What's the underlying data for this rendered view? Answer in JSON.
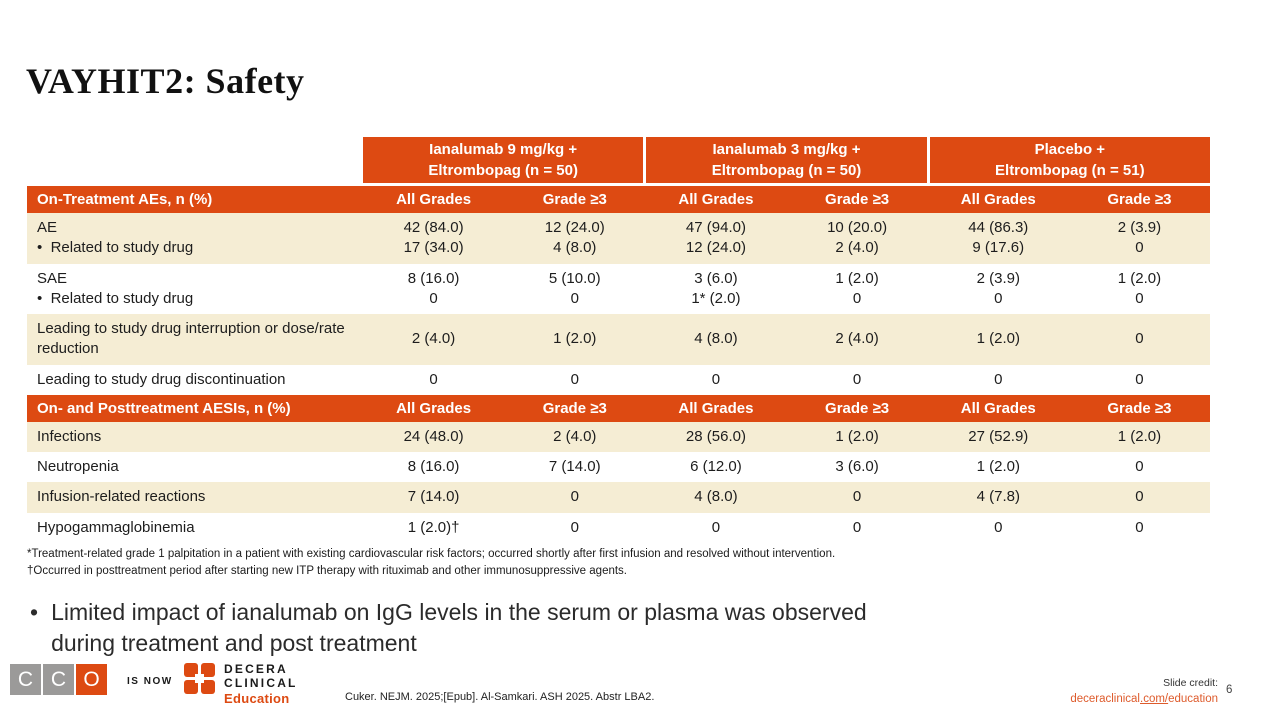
{
  "slide": {
    "title": "VAYHIT2: Safety",
    "bullet_marker": "•",
    "bullet": "Limited impact of ianalumab on IgG levels in the serum or plasma was observed\nduring treatment and post treatment",
    "page_number": "6"
  },
  "table": {
    "group_headers": [
      "Ianalumab 9 mg/kg +\nEltrombopag (n = 50)",
      "Ianalumab 3 mg/kg +\nEltrombopag (n = 50)",
      "Placebo +\nEltrombopag (n = 51)"
    ],
    "sections": [
      {
        "header": "On-Treatment AEs, n (%)",
        "subheaders": [
          "All Grades",
          "Grade ≥3",
          "All Grades",
          "Grade ≥3",
          "All Grades",
          "Grade ≥3"
        ],
        "rows": [
          {
            "label": "AE\n•  Related to study drug",
            "cells": [
              "42 (84.0)\n17 (34.0)",
              "12 (24.0)\n4 (8.0)",
              "47 (94.0)\n12 (24.0)",
              "10 (20.0)\n2 (4.0)",
              "44 (86.3)\n9 (17.6)",
              "2 (3.9)\n0"
            ]
          },
          {
            "label": "SAE\n•  Related to study drug",
            "cells": [
              "8 (16.0)\n0",
              "5 (10.0)\n0",
              "3 (6.0)\n1* (2.0)",
              "1 (2.0)\n0",
              "2 (3.9)\n0",
              "1 (2.0)\n0"
            ]
          },
          {
            "label": "Leading to study drug interruption or dose/rate reduction",
            "cells": [
              "2 (4.0)",
              "1 (2.0)",
              "4 (8.0)",
              "2 (4.0)",
              "1 (2.0)",
              "0"
            ]
          },
          {
            "label": "Leading to study drug discontinuation",
            "cells": [
              "0",
              "0",
              "0",
              "0",
              "0",
              "0"
            ]
          }
        ]
      },
      {
        "header": "On- and Posttreatment AESIs, n (%)",
        "subheaders": [
          "All Grades",
          "Grade ≥3",
          "All Grades",
          "Grade ≥3",
          "All Grades",
          "Grade ≥3"
        ],
        "rows": [
          {
            "label": "Infections",
            "cells": [
              "24 (48.0)",
              "2 (4.0)",
              "28 (56.0)",
              "1 (2.0)",
              "27 (52.9)",
              "1 (2.0)"
            ]
          },
          {
            "label": "Neutropenia",
            "cells": [
              "8 (16.0)",
              "7 (14.0)",
              "6 (12.0)",
              "3 (6.0)",
              "1 (2.0)",
              "0"
            ]
          },
          {
            "label": "Infusion-related reactions",
            "cells": [
              "7 (14.0)",
              "0",
              "4 (8.0)",
              "0",
              "4 (7.8)",
              "0"
            ]
          },
          {
            "label": "Hypogammaglobinemia",
            "cells": [
              "1 (2.0)†",
              "0",
              "0",
              "0",
              "0",
              "0"
            ]
          }
        ]
      }
    ]
  },
  "footnotes": [
    "*Treatment-related grade 1 palpitation in a patient with existing cardiovascular risk factors; occurred shortly after first infusion and resolved without intervention.",
    "†Occurred in posttreatment period after starting new ITP therapy with rituximab and other immunosuppressive agents."
  ],
  "footer": {
    "cco_letters": [
      "C",
      "C",
      "O"
    ],
    "is_now": "IS NOW",
    "decera_name_line1": "DECERA",
    "decera_name_line2": "CLINICAL",
    "decera_sub": "Education",
    "citation": "Cuker. NEJM. 2025;[Epub]. Al-Samkari. ASH 2025. Abstr LBA2.",
    "slide_credit_label": "Slide credit:",
    "link_parts": [
      "deceraclinical",
      ".com/",
      "education"
    ]
  },
  "colors": {
    "accent_orange": "#DD4A12",
    "row_beige": "#F5EDD4",
    "link_orange": "#DE5B2C"
  }
}
